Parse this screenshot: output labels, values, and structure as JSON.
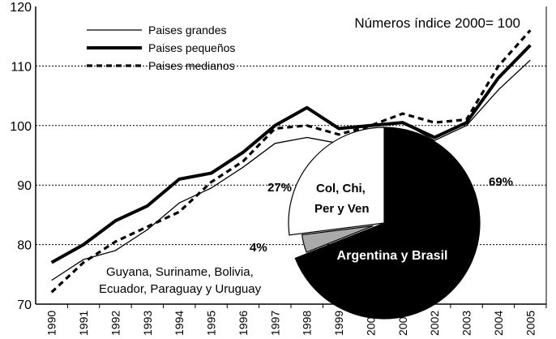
{
  "chart_data": [
    {
      "type": "line",
      "title": "",
      "annotation": "Números índice 2000= 100",
      "xlabel": "",
      "ylabel": "",
      "x": [
        "1990",
        "1991",
        "1992",
        "1993",
        "1994",
        "1995",
        "1996",
        "1997",
        "1998",
        "1999",
        "2000",
        "2001",
        "2002",
        "2003",
        "2004",
        "2005"
      ],
      "y_ticks": [
        70,
        80,
        90,
        100,
        110,
        120
      ],
      "ylim": [
        70,
        120
      ],
      "grid": "horizontal dotted",
      "legend": "top-left",
      "series": [
        {
          "name": "Paises grandes",
          "style": "thin-solid",
          "color": "#000000",
          "values": [
            74,
            77.5,
            79,
            82.5,
            87,
            89.5,
            93,
            97,
            98,
            97,
            100,
            100.5,
            97.5,
            100,
            106,
            111
          ]
        },
        {
          "name": "Paises pequeños",
          "style": "thick-solid",
          "color": "#000000",
          "values": [
            77,
            80,
            84,
            86.5,
            91,
            92,
            95.5,
            100,
            103,
            99.5,
            100,
            100.5,
            98,
            100.5,
            108,
            113.5
          ]
        },
        {
          "name": "Paises medianos",
          "style": "dashed",
          "color": "#000000",
          "values": [
            72,
            77,
            80.5,
            83,
            85.5,
            90.5,
            94,
            99.5,
            100,
            98.5,
            100,
            102,
            100.5,
            101,
            110,
            116
          ]
        }
      ]
    },
    {
      "type": "pie",
      "slices": [
        {
          "label": "Argentina y Brasil",
          "pct_label": "69%",
          "value": 69,
          "color": "#000000"
        },
        {
          "label": "Guyana, Suriname, Bolivia, Ecuador, Paraguay y Uruguay",
          "pct_label": "4%",
          "value": 4,
          "color": "#aaaaaa"
        },
        {
          "label": "Col, Chi, Per y Ven",
          "pct_label": "27%",
          "value": 27,
          "color": "#ffffff"
        }
      ]
    }
  ]
}
